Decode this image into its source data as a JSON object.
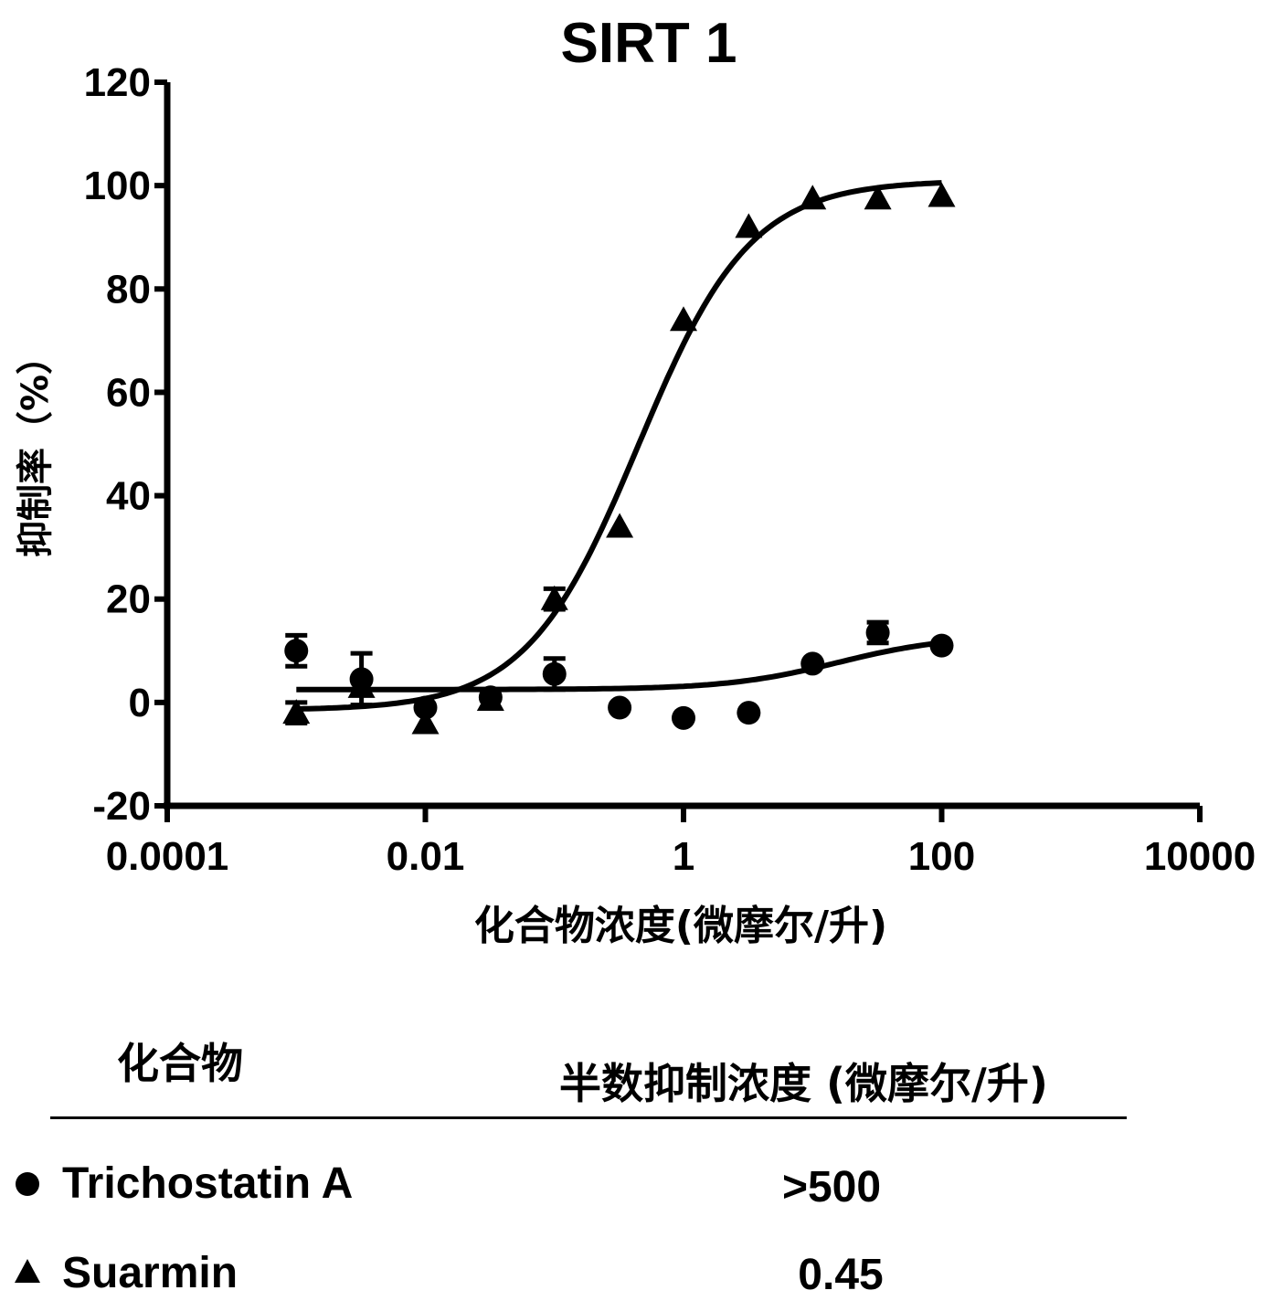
{
  "chart_data": {
    "type": "scatter",
    "title": "SIRT 1",
    "xlabel": "化合物浓度(微摩尔/升)",
    "ylabel": "抑制率（%）",
    "xscale": "log",
    "xlim": [
      0.0001,
      10000
    ],
    "ylim": [
      -20,
      120
    ],
    "xticks": [
      "0.0001",
      "0.01",
      "1",
      "100",
      "10000"
    ],
    "xtick_values": [
      0.0001,
      0.01,
      1,
      100,
      10000
    ],
    "yticks": [
      "120",
      "100",
      "80",
      "60",
      "40",
      "20",
      "0",
      "-20"
    ],
    "ytick_values": [
      120,
      100,
      80,
      60,
      40,
      20,
      0,
      -20
    ],
    "series": [
      {
        "name": "Trichostatin A",
        "marker": "circle",
        "x": [
          0.001,
          0.0032,
          0.01,
          0.032,
          0.1,
          0.32,
          1,
          3.2,
          10,
          32,
          100
        ],
        "y": [
          10,
          4.5,
          -1,
          1,
          5.5,
          -1,
          -3,
          -2,
          7.5,
          13.5,
          11
        ],
        "err": [
          3,
          5,
          0,
          0,
          3,
          0,
          0,
          0,
          0,
          2,
          0
        ],
        "fit": {
          "bottom": 2.5,
          "top": 13,
          "logEC50": 1.2,
          "slope": 1.0
        }
      },
      {
        "name": "Suarmin",
        "marker": "triangle",
        "x": [
          0.001,
          0.0032,
          0.01,
          0.032,
          0.1,
          0.32,
          1,
          3.2,
          10,
          32,
          100
        ],
        "y": [
          -2,
          3,
          -4,
          0.5,
          20,
          34,
          74,
          92,
          97.5,
          97.5,
          98
        ],
        "err": [
          2,
          0,
          0,
          0,
          2,
          0,
          0,
          0,
          0,
          0,
          0
        ],
        "fit": {
          "bottom": -1.5,
          "top": 101,
          "logEC50": -0.35,
          "slope": 1.0
        }
      }
    ]
  },
  "table": {
    "col_compound": "化合物",
    "col_ic50": "半数抑制浓度 (微摩尔/升)",
    "rows": [
      {
        "marker": "circle",
        "name": "Trichostatin A",
        "value": ">500"
      },
      {
        "marker": "triangle",
        "name": "Suarmin",
        "value": "0.45"
      }
    ]
  }
}
